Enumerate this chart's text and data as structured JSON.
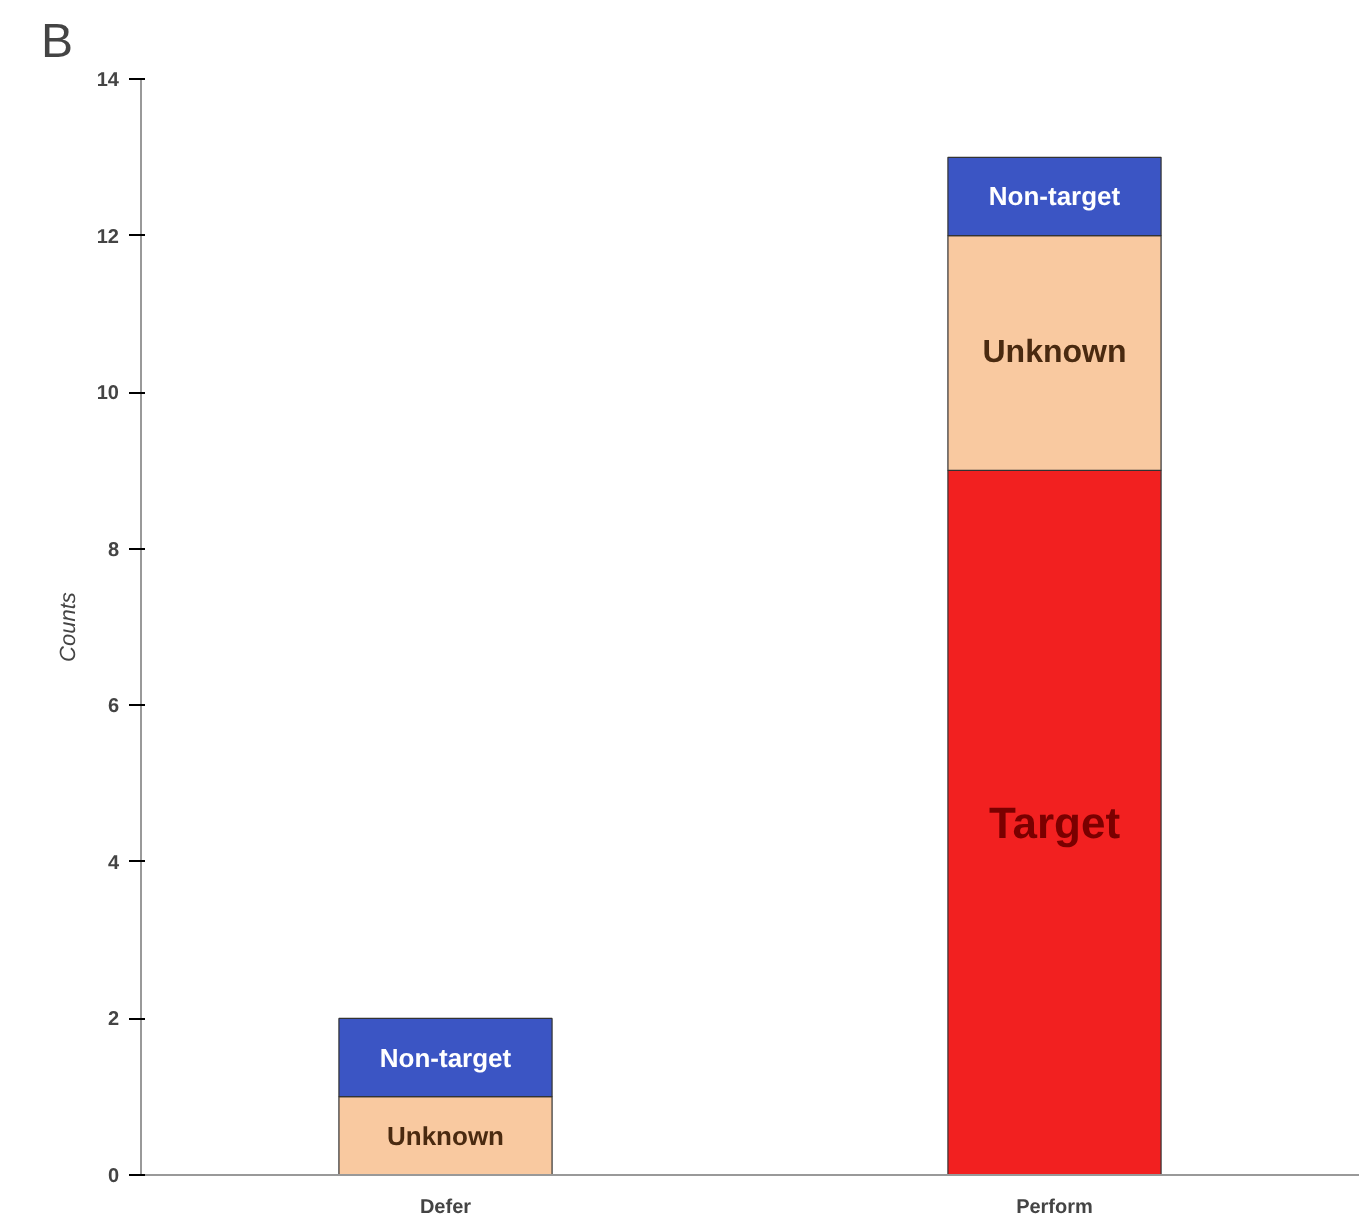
{
  "chart_data": {
    "type": "bar",
    "stacked": true,
    "ylabel": "Counts",
    "categories": [
      "Defer",
      "Perform"
    ],
    "series": [
      {
        "name": "Target",
        "color": "#f22020",
        "values": [
          0,
          9
        ]
      },
      {
        "name": "Unknown",
        "color": "#f9c9a0",
        "values": [
          1,
          3
        ]
      },
      {
        "name": "Non-target",
        "color": "#3b55c4",
        "values": [
          1,
          1
        ]
      }
    ],
    "ylim": [
      0,
      14
    ],
    "yticks": [
      0,
      2,
      4,
      6,
      8,
      10,
      12,
      14
    ],
    "grid": false,
    "annotations": [
      "B"
    ]
  }
}
